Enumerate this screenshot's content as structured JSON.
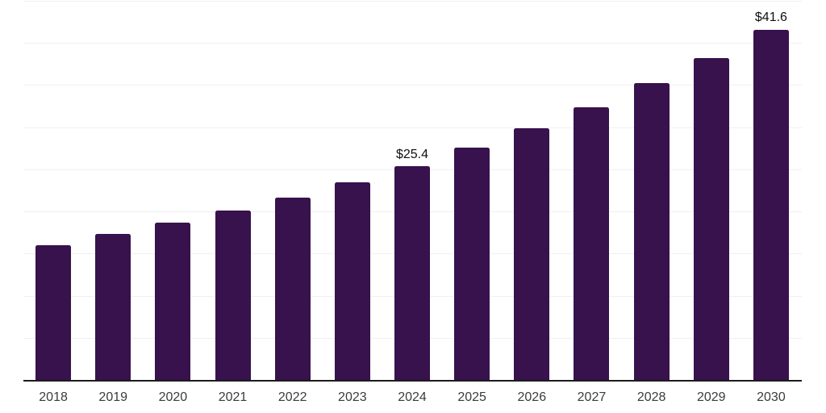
{
  "chart_data": {
    "type": "bar",
    "title": "",
    "xlabel": "",
    "ylabel": "",
    "categories": [
      "2018",
      "2019",
      "2020",
      "2021",
      "2022",
      "2023",
      "2024",
      "2025",
      "2026",
      "2027",
      "2028",
      "2029",
      "2030"
    ],
    "values": [
      16.0,
      17.3,
      18.7,
      20.1,
      21.6,
      23.5,
      25.4,
      27.6,
      29.9,
      32.4,
      35.2,
      38.2,
      41.6
    ],
    "data_labels": {
      "2024": "$25.4",
      "2030": "$41.6"
    },
    "ylim": [
      0,
      45
    ],
    "grid_step": 5,
    "grid_visible": true,
    "y_axis_labels_visible": false,
    "legend": "none",
    "colors": {
      "bar": "#37124d",
      "grid_line": "#f0f0f0",
      "axis_line": "#1c1c1c",
      "tick_label": "#3b3b3b",
      "data_label": "#0f0f0f",
      "background": "#ffffff"
    }
  }
}
